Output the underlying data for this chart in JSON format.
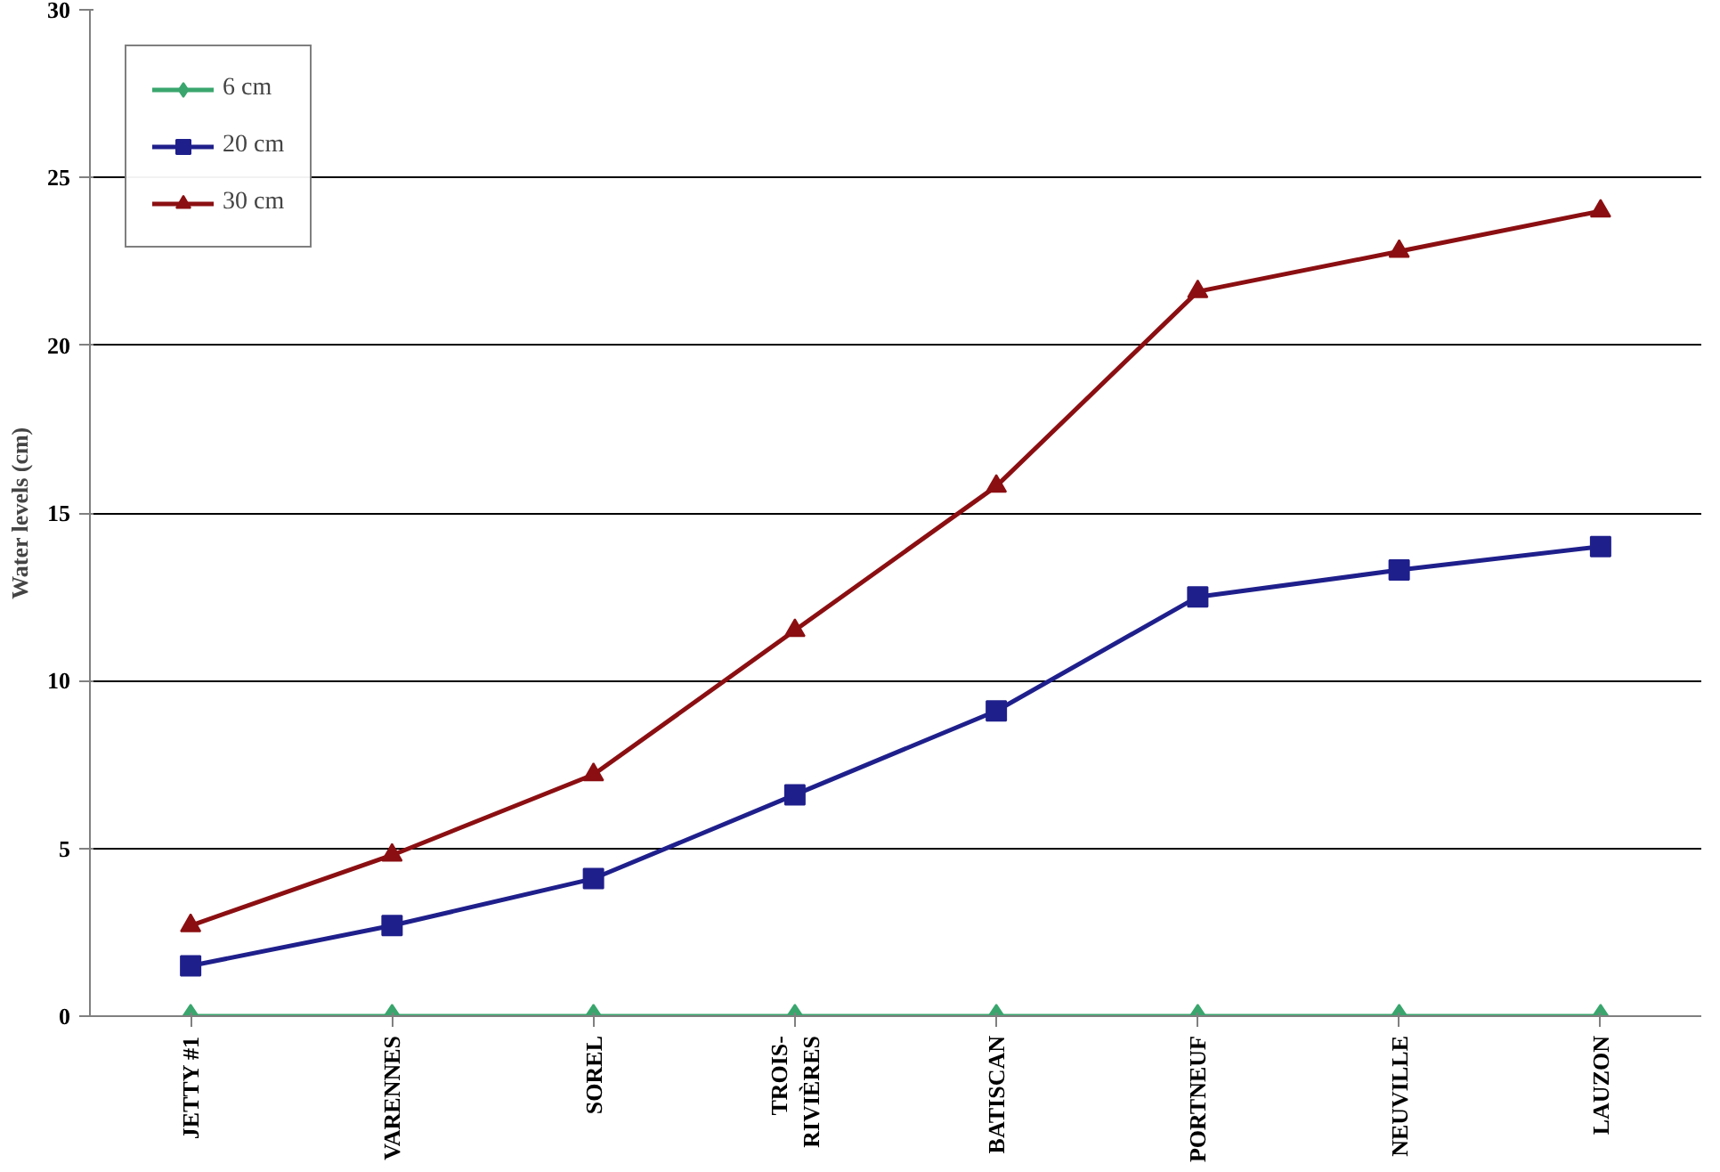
{
  "chart_data": {
    "type": "line",
    "ylabel": "Water levels (cm)",
    "categories": [
      "JETTY #1",
      "VARENNES",
      "SOREL",
      "TROIS-\nRIVIÈRES",
      "BATISCAN",
      "PORTNEUF",
      "NEUVILLE",
      "LAUZON"
    ],
    "series": [
      {
        "name": "6 cm",
        "color": "#3aa66e",
        "marker": "diamond",
        "values": [
          0,
          0,
          0,
          0,
          0,
          0,
          0,
          0
        ]
      },
      {
        "name": "20 cm",
        "color": "#1f1f8c",
        "marker": "square",
        "values": [
          1.5,
          2.7,
          4.1,
          6.6,
          9.1,
          12.5,
          13.3,
          14.0
        ]
      },
      {
        "name": "30 cm",
        "color": "#8b0f12",
        "marker": "triangle",
        "values": [
          2.7,
          4.8,
          7.2,
          11.5,
          15.8,
          21.6,
          22.8,
          24.0
        ]
      }
    ],
    "ylim": [
      0,
      30
    ],
    "yticks": [
      0,
      5,
      10,
      15,
      20,
      25,
      30
    ],
    "grid": "y",
    "legend": "top left",
    "line_style": "solid"
  }
}
